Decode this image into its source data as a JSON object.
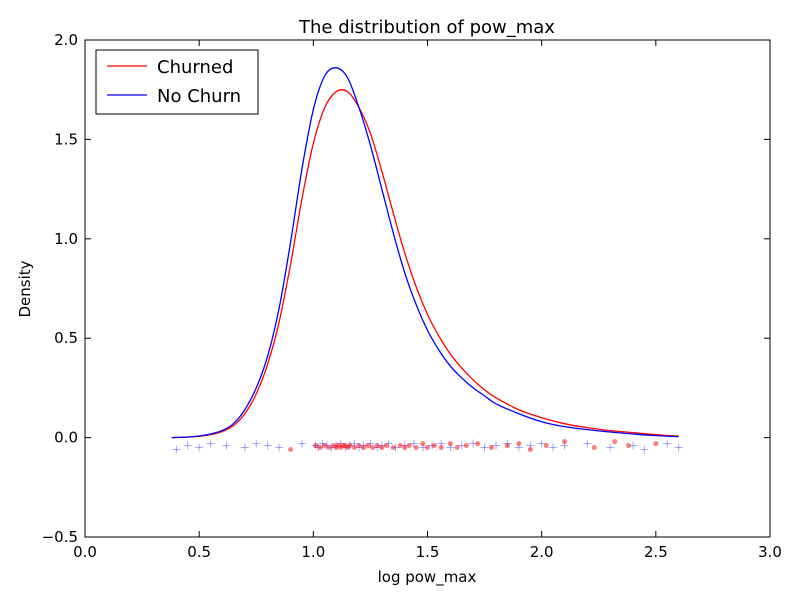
{
  "chart_data": {
    "type": "line",
    "title": "The distribution of pow_max",
    "xlabel": "log pow_max",
    "ylabel": "Density",
    "xlim": [
      0.0,
      3.0
    ],
    "ylim": [
      -0.5,
      2.0
    ],
    "xticks": [
      "0.0",
      "0.5",
      "1.0",
      "1.5",
      "2.0",
      "2.5",
      "3.0"
    ],
    "yticks": [
      "−0.5",
      "0.0",
      "0.5",
      "1.0",
      "1.5",
      "2.0"
    ],
    "grid": false,
    "legend_position": "top-left",
    "series": [
      {
        "name": "Churned",
        "color": "#ff0000",
        "x": [
          0.38,
          0.45,
          0.5,
          0.55,
          0.6,
          0.65,
          0.7,
          0.75,
          0.8,
          0.85,
          0.9,
          0.95,
          1.0,
          1.05,
          1.1,
          1.15,
          1.2,
          1.25,
          1.3,
          1.35,
          1.4,
          1.45,
          1.5,
          1.55,
          1.6,
          1.65,
          1.7,
          1.75,
          1.8,
          1.9,
          2.0,
          2.1,
          2.2,
          2.3,
          2.4,
          2.5,
          2.6
        ],
        "y": [
          0.0,
          0.003,
          0.007,
          0.015,
          0.03,
          0.06,
          0.12,
          0.22,
          0.37,
          0.58,
          0.87,
          1.2,
          1.48,
          1.66,
          1.74,
          1.74,
          1.66,
          1.53,
          1.34,
          1.13,
          0.93,
          0.76,
          0.62,
          0.51,
          0.42,
          0.35,
          0.29,
          0.24,
          0.2,
          0.14,
          0.1,
          0.07,
          0.05,
          0.035,
          0.025,
          0.015,
          0.007
        ]
      },
      {
        "name": "No Churn",
        "color": "#0000ff",
        "x": [
          0.38,
          0.45,
          0.5,
          0.55,
          0.6,
          0.65,
          0.7,
          0.75,
          0.8,
          0.85,
          0.9,
          0.95,
          1.0,
          1.05,
          1.1,
          1.15,
          1.2,
          1.25,
          1.3,
          1.35,
          1.4,
          1.45,
          1.5,
          1.55,
          1.6,
          1.65,
          1.7,
          1.75,
          1.8,
          1.9,
          2.0,
          2.1,
          2.2,
          2.3,
          2.4,
          2.5,
          2.6
        ],
        "y": [
          0.0,
          0.003,
          0.008,
          0.018,
          0.035,
          0.07,
          0.14,
          0.25,
          0.41,
          0.65,
          0.98,
          1.35,
          1.65,
          1.82,
          1.86,
          1.81,
          1.66,
          1.47,
          1.25,
          1.03,
          0.83,
          0.67,
          0.54,
          0.44,
          0.36,
          0.3,
          0.25,
          0.21,
          0.17,
          0.12,
          0.08,
          0.055,
          0.04,
          0.028,
          0.018,
          0.01,
          0.005
        ]
      }
    ],
    "rug": {
      "churned": {
        "color": "#ff0000",
        "marker": "dot",
        "x": [
          0.9,
          1.01,
          1.03,
          1.05,
          1.07,
          1.09,
          1.1,
          1.11,
          1.12,
          1.13,
          1.14,
          1.15,
          1.16,
          1.18,
          1.2,
          1.22,
          1.24,
          1.26,
          1.28,
          1.3,
          1.32,
          1.35,
          1.38,
          1.4,
          1.42,
          1.45,
          1.48,
          1.5,
          1.53,
          1.56,
          1.6,
          1.63,
          1.67,
          1.72,
          1.78,
          1.85,
          1.9,
          1.95,
          2.02,
          2.1,
          2.23,
          2.32,
          2.38,
          2.5
        ],
        "y": [
          -0.06,
          -0.04,
          -0.05,
          -0.04,
          -0.05,
          -0.04,
          -0.05,
          -0.04,
          -0.05,
          -0.04,
          -0.04,
          -0.05,
          -0.04,
          -0.05,
          -0.04,
          -0.05,
          -0.04,
          -0.05,
          -0.04,
          -0.05,
          -0.04,
          -0.05,
          -0.04,
          -0.05,
          -0.04,
          -0.05,
          -0.03,
          -0.05,
          -0.04,
          -0.05,
          -0.03,
          -0.05,
          -0.04,
          -0.03,
          -0.05,
          -0.04,
          -0.03,
          -0.06,
          -0.04,
          -0.02,
          -0.05,
          -0.02,
          -0.04,
          -0.03
        ]
      },
      "no_churn": {
        "color": "#0000ff",
        "marker": "plus",
        "x": [
          0.4,
          0.45,
          0.5,
          0.55,
          0.62,
          0.7,
          0.75,
          0.8,
          0.85,
          0.95,
          1.01,
          1.02,
          1.04,
          1.06,
          1.08,
          1.1,
          1.12,
          1.14,
          1.16,
          1.18,
          1.2,
          1.22,
          1.25,
          1.28,
          1.3,
          1.33,
          1.36,
          1.4,
          1.44,
          1.48,
          1.52,
          1.56,
          1.6,
          1.65,
          1.7,
          1.75,
          1.8,
          1.85,
          1.9,
          1.95,
          2.0,
          2.05,
          2.1,
          2.2,
          2.3,
          2.4,
          2.45,
          2.55,
          2.6
        ],
        "y": [
          -0.06,
          -0.04,
          -0.05,
          -0.03,
          -0.04,
          -0.05,
          -0.03,
          -0.04,
          -0.05,
          -0.03,
          -0.04,
          -0.05,
          -0.03,
          -0.04,
          -0.05,
          -0.04,
          -0.03,
          -0.05,
          -0.04,
          -0.03,
          -0.05,
          -0.04,
          -0.03,
          -0.05,
          -0.04,
          -0.03,
          -0.05,
          -0.04,
          -0.03,
          -0.05,
          -0.04,
          -0.03,
          -0.05,
          -0.04,
          -0.03,
          -0.05,
          -0.04,
          -0.03,
          -0.05,
          -0.04,
          -0.03,
          -0.05,
          -0.04,
          -0.03,
          -0.05,
          -0.04,
          -0.06,
          -0.03,
          -0.05
        ]
      }
    }
  }
}
